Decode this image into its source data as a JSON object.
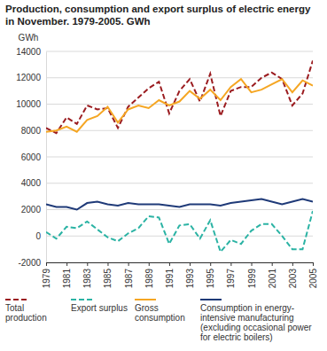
{
  "chart_data": {
    "type": "line",
    "title": "Production, consumption and export surplus of electric energy in November. 1979-2005. GWh",
    "y_label": "GWh",
    "x": [
      1979,
      1980,
      1981,
      1982,
      1983,
      1984,
      1985,
      1986,
      1987,
      1988,
      1989,
      1990,
      1991,
      1992,
      1993,
      1994,
      1995,
      1996,
      1997,
      1998,
      1999,
      2000,
      2001,
      2002,
      2003,
      2004,
      2005
    ],
    "xlim": [
      1979,
      2005
    ],
    "xticks": [
      1979,
      1981,
      1983,
      1985,
      1987,
      1989,
      1991,
      1993,
      1995,
      1997,
      1999,
      2001,
      2003,
      2005
    ],
    "ylim": [
      -2000,
      14000
    ],
    "yticks": [
      -2000,
      0,
      2000,
      4000,
      6000,
      8000,
      10000,
      12000,
      14000
    ],
    "grid": true,
    "legend": "bottom",
    "series": [
      {
        "name": "Total production",
        "color": "#9b1c20",
        "line_style": "dashed",
        "values": [
          8200,
          7800,
          9000,
          8500,
          9900,
          9600,
          9700,
          8200,
          9800,
          10500,
          11200,
          11700,
          9300,
          11000,
          11900,
          10200,
          12300,
          9100,
          11000,
          11300,
          11300,
          12000,
          12400,
          11900,
          9900,
          10800,
          13300
        ]
      },
      {
        "name": "Export surplus",
        "color": "#2bb3a4",
        "line_style": "dashed",
        "values": [
          300,
          -200,
          700,
          600,
          1100,
          500,
          -100,
          -400,
          200,
          600,
          1500,
          1400,
          -600,
          800,
          900,
          -200,
          1200,
          -1200,
          -300,
          -600,
          400,
          900,
          900,
          0,
          -1000,
          -1000,
          1900
        ]
      },
      {
        "name": "Gross consumption",
        "color": "#f5a623",
        "line_style": "solid",
        "values": [
          7900,
          8000,
          8300,
          7900,
          8800,
          9100,
          9800,
          8600,
          9600,
          9900,
          9700,
          10300,
          9900,
          10200,
          11000,
          10400,
          11100,
          10300,
          11300,
          11900,
          10900,
          11100,
          11500,
          11900,
          10900,
          11800,
          11400
        ]
      },
      {
        "name": "Consumption in energy-intensive manufacturing (excluding occasional power for electric boilers)",
        "color": "#1f3a78",
        "line_style": "solid",
        "values": [
          2400,
          2200,
          2200,
          2000,
          2500,
          2600,
          2400,
          2300,
          2500,
          2400,
          2400,
          2400,
          2300,
          2200,
          2400,
          2400,
          2400,
          2300,
          2500,
          2600,
          2700,
          2800,
          2600,
          2400,
          2600,
          2800,
          2600
        ]
      }
    ]
  }
}
